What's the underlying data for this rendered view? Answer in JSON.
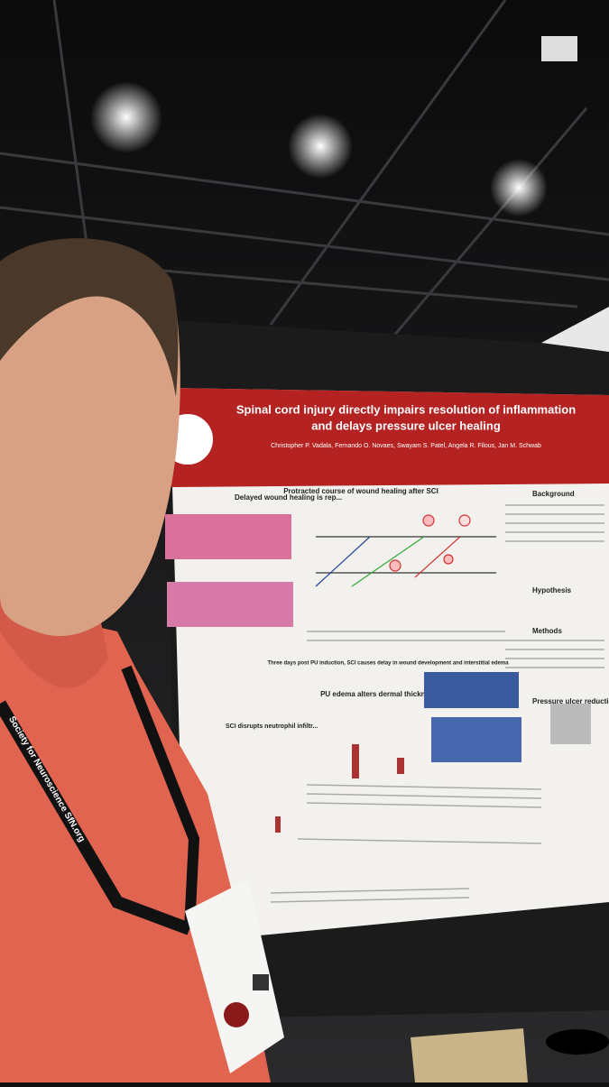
{
  "poster": {
    "title_lines": [
      "Spinal cord injury directly impairs resolution of inflammation",
      "and delays pressure ulcer healing"
    ],
    "authors": "Christopher P. Vadala, Fernando O. Novaes, Swayam S. Patel, Angela R. Filous, Jan M. Schwab",
    "sections": [
      "Background",
      "Hypothesis",
      "Methods",
      "Pressure ulcer reduction"
    ],
    "figures": [
      "Protracted course of wound healing after SCI",
      "Delayed wound healing is rep...",
      "PU edema alters dermal thickness",
      "Three days post PU induction, SCI causes delay in wound development and interstitial edema",
      "SCI disrupts neutrophil infiltr..."
    ]
  },
  "lanyard": "Society for Neuroscience SfN.org"
}
